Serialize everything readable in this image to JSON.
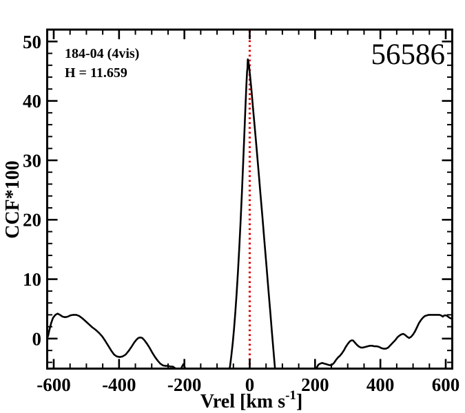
{
  "figure": {
    "annotations": {
      "target_id": "184-04 (4vis)",
      "h_magnitude": "H = 11.659",
      "mjd": "56586"
    },
    "colors": {
      "background": "#ffffff",
      "frame": "#000000",
      "curve": "#000000",
      "reference_line": "#e00000"
    }
  },
  "chart_data": {
    "type": "line",
    "title": "",
    "xlabel_prefix": "Vrel [km s",
    "xlabel_superscript": "-1",
    "xlabel_suffix": "]",
    "xlabel_plain": "Vrel [km s^-1]",
    "ylabel": "CCF*100",
    "xlim": [
      -620,
      620
    ],
    "ylim": [
      -5.05,
      52.0
    ],
    "x_major_ticks": [
      -600,
      -400,
      -200,
      0,
      200,
      400,
      600
    ],
    "x_minor_step": 50,
    "y_major_ticks": [
      0,
      10,
      20,
      30,
      40,
      50
    ],
    "y_minor_step": 2,
    "grid": false,
    "legend": false,
    "reference_line_x": 0,
    "series": [
      {
        "name": "CCF",
        "color": "#000000",
        "points": [
          [
            -620,
            0.1
          ],
          [
            -617,
            0.5
          ],
          [
            -613,
            1.5
          ],
          [
            -608,
            2.6
          ],
          [
            -602,
            3.5
          ],
          [
            -595,
            4.0
          ],
          [
            -588,
            4.2
          ],
          [
            -581,
            4.0
          ],
          [
            -573,
            3.7
          ],
          [
            -565,
            3.6
          ],
          [
            -557,
            3.7
          ],
          [
            -549,
            3.9
          ],
          [
            -540,
            4.0
          ],
          [
            -531,
            4.0
          ],
          [
            -522,
            3.8
          ],
          [
            -512,
            3.4
          ],
          [
            -502,
            2.9
          ],
          [
            -492,
            2.4
          ],
          [
            -482,
            1.9
          ],
          [
            -472,
            1.5
          ],
          [
            -462,
            1.0
          ],
          [
            -452,
            0.4
          ],
          [
            -442,
            -0.4
          ],
          [
            -432,
            -1.3
          ],
          [
            -423,
            -2.1
          ],
          [
            -415,
            -2.7
          ],
          [
            -407,
            -3.0
          ],
          [
            -398,
            -3.1
          ],
          [
            -389,
            -3.0
          ],
          [
            -380,
            -2.7
          ],
          [
            -371,
            -2.1
          ],
          [
            -362,
            -1.4
          ],
          [
            -354,
            -0.7
          ],
          [
            -347,
            -0.2
          ],
          [
            -341,
            0.1
          ],
          [
            -335,
            0.2
          ],
          [
            -329,
            0.1
          ],
          [
            -322,
            -0.3
          ],
          [
            -314,
            -0.9
          ],
          [
            -306,
            -1.6
          ],
          [
            -298,
            -2.4
          ],
          [
            -290,
            -3.1
          ],
          [
            -282,
            -3.7
          ],
          [
            -274,
            -4.2
          ],
          [
            -266,
            -4.5
          ],
          [
            -258,
            -4.6
          ],
          [
            -250,
            -4.6
          ],
          [
            -243,
            -4.7
          ],
          [
            -236,
            -4.7
          ],
          [
            -230,
            -4.9
          ],
          [
            -224,
            -5.2
          ],
          [
            -218,
            -5.5
          ],
          [
            -213,
            -5.3
          ],
          [
            -208,
            -4.8
          ],
          [
            -203,
            -4.3
          ],
          [
            -199,
            -4.8
          ],
          [
            -194,
            -5.6
          ],
          [
            -150,
            -7.0
          ],
          [
            -100,
            -7.0
          ],
          [
            -64,
            -5.8
          ],
          [
            -60,
            -4.6
          ],
          [
            -56,
            -2.8
          ],
          [
            -52,
            -0.8
          ],
          [
            -48,
            1.6
          ],
          [
            -44,
            4.4
          ],
          [
            -40,
            7.6
          ],
          [
            -36,
            11.2
          ],
          [
            -32,
            15.2
          ],
          [
            -28,
            19.6
          ],
          [
            -24,
            24.4
          ],
          [
            -20,
            29.6
          ],
          [
            -16,
            35.0
          ],
          [
            -13,
            39.0
          ],
          [
            -10,
            43.0
          ],
          [
            -8,
            45.0
          ],
          [
            -7,
            45.4
          ],
          [
            -6,
            47.0
          ],
          [
            -4,
            46.6
          ],
          [
            -2,
            45.8
          ],
          [
            1,
            44.2
          ],
          [
            5,
            42.0
          ],
          [
            10,
            38.9
          ],
          [
            15,
            35.8
          ],
          [
            21,
            32.0
          ],
          [
            27,
            28.2
          ],
          [
            33,
            24.3
          ],
          [
            39,
            20.4
          ],
          [
            45,
            16.4
          ],
          [
            51,
            12.4
          ],
          [
            57,
            8.4
          ],
          [
            63,
            4.4
          ],
          [
            68,
            1.1
          ],
          [
            73,
            -2.2
          ],
          [
            77,
            -4.8
          ],
          [
            80,
            -6.0
          ],
          [
            120,
            -7.0
          ],
          [
            190,
            -7.0
          ],
          [
            201,
            -5.6
          ],
          [
            205,
            -4.9
          ],
          [
            210,
            -4.4
          ],
          [
            216,
            -4.2
          ],
          [
            222,
            -4.1
          ],
          [
            228,
            -4.2
          ],
          [
            234,
            -4.3
          ],
          [
            240,
            -4.4
          ],
          [
            246,
            -4.5
          ],
          [
            252,
            -4.4
          ],
          [
            258,
            -4.1
          ],
          [
            264,
            -3.6
          ],
          [
            270,
            -3.2
          ],
          [
            276,
            -2.9
          ],
          [
            282,
            -2.5
          ],
          [
            288,
            -2.0
          ],
          [
            294,
            -1.4
          ],
          [
            300,
            -0.9
          ],
          [
            306,
            -0.5
          ],
          [
            311,
            -0.3
          ],
          [
            316,
            -0.3
          ],
          [
            321,
            -0.6
          ],
          [
            327,
            -1.0
          ],
          [
            333,
            -1.3
          ],
          [
            340,
            -1.5
          ],
          [
            347,
            -1.5
          ],
          [
            354,
            -1.4
          ],
          [
            361,
            -1.3
          ],
          [
            368,
            -1.2
          ],
          [
            375,
            -1.2
          ],
          [
            382,
            -1.3
          ],
          [
            389,
            -1.3
          ],
          [
            396,
            -1.4
          ],
          [
            403,
            -1.6
          ],
          [
            410,
            -1.7
          ],
          [
            417,
            -1.7
          ],
          [
            424,
            -1.5
          ],
          [
            431,
            -1.1
          ],
          [
            438,
            -0.7
          ],
          [
            445,
            -0.3
          ],
          [
            452,
            0.2
          ],
          [
            458,
            0.5
          ],
          [
            464,
            0.7
          ],
          [
            470,
            0.8
          ],
          [
            476,
            0.6
          ],
          [
            482,
            0.3
          ],
          [
            488,
            0.1
          ],
          [
            494,
            0.3
          ],
          [
            500,
            0.7
          ],
          [
            506,
            1.2
          ],
          [
            512,
            1.9
          ],
          [
            518,
            2.6
          ],
          [
            524,
            3.1
          ],
          [
            530,
            3.5
          ],
          [
            536,
            3.8
          ],
          [
            542,
            3.9
          ],
          [
            548,
            4.0
          ],
          [
            556,
            4.0
          ],
          [
            564,
            4.0
          ],
          [
            572,
            4.0
          ],
          [
            580,
            4.0
          ],
          [
            586,
            3.9
          ],
          [
            591,
            3.7
          ],
          [
            596,
            3.9
          ],
          [
            602,
            3.9
          ],
          [
            607,
            3.7
          ],
          [
            612,
            3.5
          ],
          [
            616,
            3.4
          ],
          [
            619,
            3.4
          ]
        ]
      }
    ]
  }
}
